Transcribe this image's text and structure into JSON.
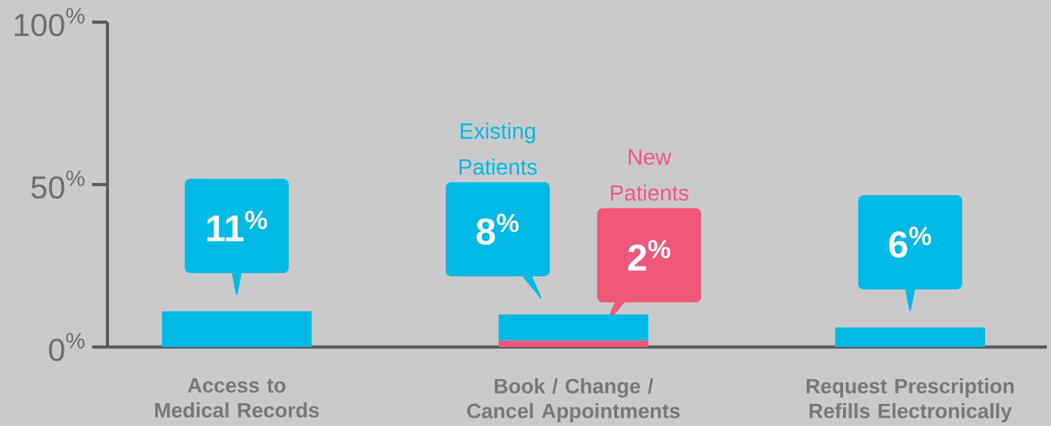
{
  "chart_data": {
    "type": "bar",
    "stacked": true,
    "categories": [
      "Access to Medical Records",
      "Book / Change / Cancel Appointments",
      "Request Prescription Refills Electronically"
    ],
    "series": [
      {
        "name": "New Patients",
        "color": "#f0587a",
        "values": [
          null,
          2,
          null
        ],
        "value_labels": [
          null,
          "2$^{%}$",
          null
        ]
      },
      {
        "name": "Existing Patients",
        "color": "#00b9e4",
        "values": [
          11,
          8,
          6
        ],
        "value_labels": [
          "11$^{%}$",
          "8$^{%}$",
          "6$^{%}$"
        ]
      }
    ],
    "ylim": [
      0,
      100
    ],
    "yticks": [
      {
        "value": 0,
        "label": "0$^{%}$"
      },
      {
        "value": 50,
        "label": "50$^{%}$"
      },
      {
        "value": 100,
        "label": "100$^{%}$"
      }
    ]
  }
}
